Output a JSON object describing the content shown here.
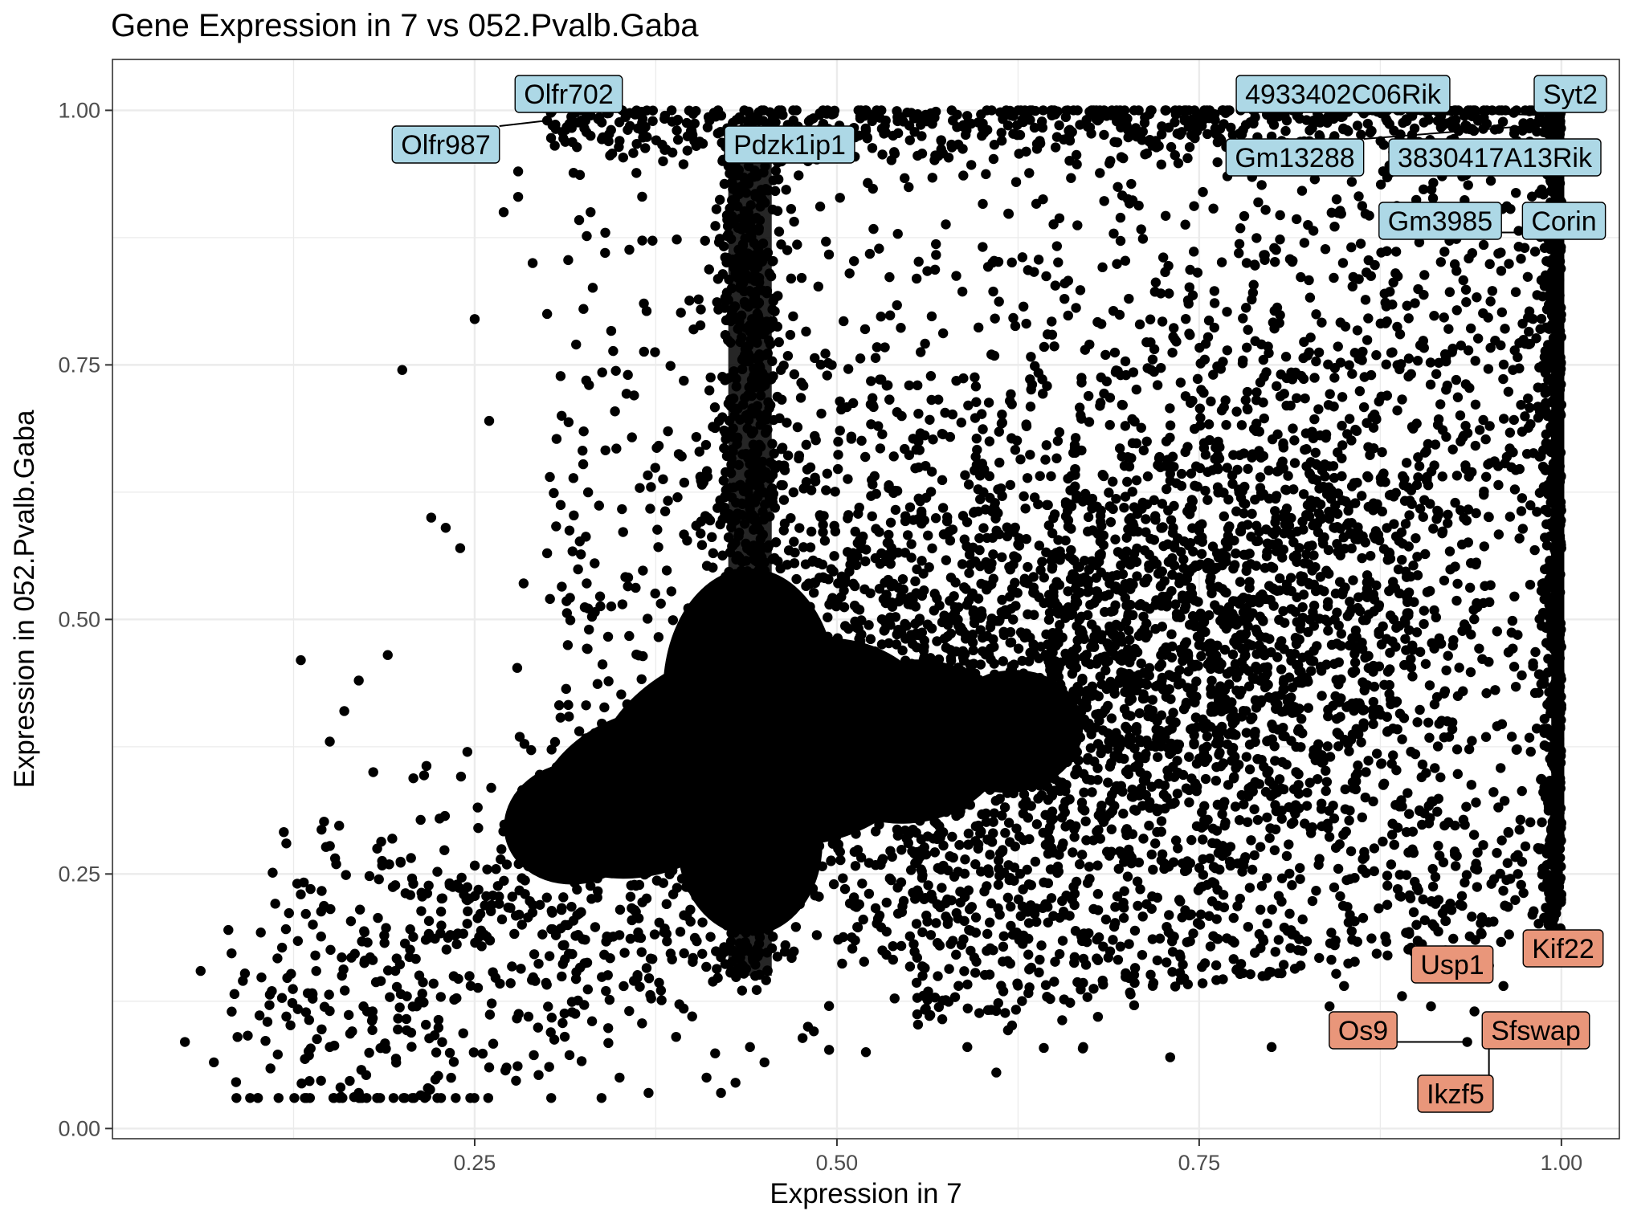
{
  "chart_data": {
    "type": "scatter",
    "title": "Gene Expression in 7 vs 052.Pvalb.Gaba",
    "xlabel": "Expression in 7",
    "ylabel": "Expression in 052.Pvalb.Gaba",
    "xlim": [
      0.0,
      1.04
    ],
    "ylim": [
      -0.01,
      1.05
    ],
    "xticks": [
      0.25,
      0.5,
      0.75,
      1.0
    ],
    "xtick_labels": [
      "0.25",
      "0.50",
      "0.75",
      "1.00"
    ],
    "yticks": [
      0.0,
      0.25,
      0.5,
      0.75,
      1.0
    ],
    "ytick_labels": [
      "0.00",
      "0.25",
      "0.50",
      "0.75",
      "1.00"
    ],
    "grid": true,
    "legend": "none",
    "colors": {
      "points": "#000000",
      "high_label_fill": "#add8e6",
      "low_label_fill": "#e9967a",
      "grid": "#ebebeb",
      "panel_border": "#333333"
    },
    "labeled_points": [
      {
        "gene": "Olfr702",
        "x": 0.33,
        "y": 0.995,
        "group": "high"
      },
      {
        "gene": "Olfr987",
        "x": 0.3,
        "y": 0.99,
        "group": "high"
      },
      {
        "gene": "Pdzk1ip1",
        "x": 0.44,
        "y": 0.995,
        "group": "high"
      },
      {
        "gene": "4933402C06Rik",
        "x": 0.995,
        "y": 0.995,
        "group": "high"
      },
      {
        "gene": "Syt2",
        "x": 1.0,
        "y": 1.0,
        "group": "high"
      },
      {
        "gene": "Gm13288",
        "x": 0.98,
        "y": 0.985,
        "group": "high"
      },
      {
        "gene": "3830417A13Rik",
        "x": 0.99,
        "y": 0.99,
        "group": "high"
      },
      {
        "gene": "Gm3985",
        "x": 0.99,
        "y": 0.88,
        "group": "high"
      },
      {
        "gene": "Corin",
        "x": 1.0,
        "y": 0.91,
        "group": "high"
      },
      {
        "gene": "Kif22",
        "x": 0.995,
        "y": 0.19,
        "group": "low"
      },
      {
        "gene": "Usp1",
        "x": 0.94,
        "y": 0.15,
        "group": "low"
      },
      {
        "gene": "Os9",
        "x": 0.935,
        "y": 0.085,
        "group": "low"
      },
      {
        "gene": "Sfswap",
        "x": 0.96,
        "y": 0.1,
        "group": "low"
      },
      {
        "gene": "Ikzf5",
        "x": 0.95,
        "y": 0.1,
        "group": "low"
      }
    ],
    "scatter_points": [
      [
        0.05,
        0.085
      ],
      [
        0.07,
        0.065
      ],
      [
        0.08,
        0.195
      ],
      [
        0.09,
        0.145
      ],
      [
        0.11,
        0.135
      ],
      [
        0.12,
        0.11
      ],
      [
        0.12,
        0.28
      ],
      [
        0.13,
        0.23
      ],
      [
        0.13,
        0.46
      ],
      [
        0.14,
        0.17
      ],
      [
        0.15,
        0.08
      ],
      [
        0.15,
        0.38
      ],
      [
        0.16,
        0.41
      ],
      [
        0.17,
        0.035
      ],
      [
        0.17,
        0.44
      ],
      [
        0.18,
        0.35
      ],
      [
        0.19,
        0.465
      ],
      [
        0.2,
        0.745
      ],
      [
        0.21,
        0.12
      ],
      [
        0.22,
        0.6
      ],
      [
        0.23,
        0.59
      ],
      [
        0.24,
        0.57
      ],
      [
        0.25,
        0.795
      ],
      [
        0.26,
        0.695
      ],
      [
        0.26,
        0.06
      ],
      [
        0.27,
        0.9
      ],
      [
        0.28,
        0.915
      ],
      [
        0.28,
        0.94
      ],
      [
        0.29,
        0.85
      ],
      [
        0.3,
        0.8
      ],
      [
        0.3,
        0.565
      ],
      [
        0.31,
        0.7
      ],
      [
        0.32,
        0.77
      ],
      [
        0.33,
        0.9
      ],
      [
        0.33,
        0.975
      ],
      [
        0.34,
        0.86
      ],
      [
        0.35,
        0.97
      ],
      [
        0.35,
        0.05
      ],
      [
        0.36,
        0.72
      ],
      [
        0.37,
        0.035
      ],
      [
        0.38,
        0.95
      ],
      [
        0.39,
        0.62
      ],
      [
        0.41,
        0.05
      ],
      [
        0.42,
        0.035
      ],
      [
        0.43,
        0.045
      ],
      [
        0.44,
        0.08
      ],
      [
        0.45,
        0.065
      ],
      [
        0.46,
        0.98
      ],
      [
        0.47,
        0.99
      ],
      [
        0.48,
        0.95
      ],
      [
        0.5,
        0.96
      ],
      [
        0.52,
        0.98
      ],
      [
        0.55,
        0.985
      ],
      [
        0.58,
        0.99
      ],
      [
        0.6,
        0.975
      ],
      [
        0.61,
        0.055
      ],
      [
        0.62,
        0.995
      ],
      [
        0.64,
        0.97
      ],
      [
        0.66,
        0.98
      ],
      [
        0.68,
        0.99
      ],
      [
        0.7,
        0.985
      ],
      [
        0.72,
        0.97
      ],
      [
        0.74,
        0.99
      ],
      [
        0.76,
        0.995
      ],
      [
        0.78,
        0.98
      ],
      [
        0.8,
        0.99
      ],
      [
        0.8,
        0.08
      ],
      [
        0.82,
        0.16
      ],
      [
        0.84,
        0.12
      ],
      [
        0.85,
        0.14
      ],
      [
        0.86,
        0.11
      ],
      [
        0.88,
        0.17
      ],
      [
        0.89,
        0.13
      ],
      [
        0.9,
        0.2
      ],
      [
        0.91,
        0.12
      ],
      [
        0.92,
        0.175
      ],
      [
        0.93,
        0.22
      ],
      [
        0.94,
        0.115
      ],
      [
        0.95,
        0.16
      ],
      [
        0.96,
        0.14
      ],
      [
        0.97,
        0.25
      ],
      [
        0.98,
        0.21
      ],
      [
        0.99,
        0.27
      ],
      [
        1.0,
        0.3
      ],
      [
        1.0,
        0.23
      ],
      [
        0.73,
        0.07
      ],
      [
        0.67,
        0.08
      ],
      [
        0.59,
        0.08
      ],
      [
        0.52,
        0.075
      ],
      [
        0.48,
        0.1
      ]
    ]
  }
}
